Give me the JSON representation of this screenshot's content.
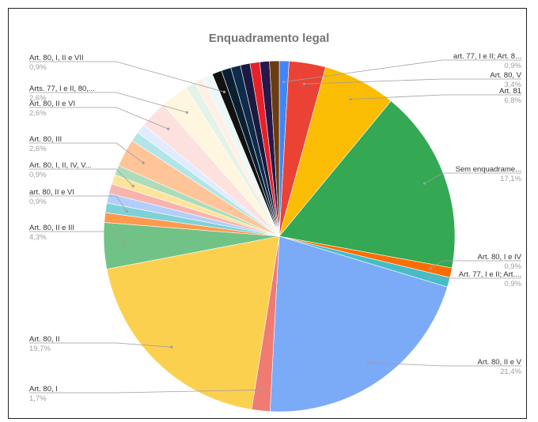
{
  "chart_data": {
    "type": "pie",
    "title": "Enquadramento legal",
    "legend": "none",
    "slices": [
      {
        "label": "art. 77, I e II; Art. 8...",
        "value": 0.9,
        "value_label": "0,9%",
        "color": "#4285f4",
        "shown": true
      },
      {
        "label": "Art. 80, V",
        "value": 3.4,
        "value_label": "3,4%",
        "color": "#ea4335",
        "shown": true
      },
      {
        "label": "Art. 81",
        "value": 6.8,
        "value_label": "6,8%",
        "color": "#fbbc04",
        "shown": true
      },
      {
        "label": "Sem enquadrame...",
        "value": 17.1,
        "value_label": "17,1%",
        "color": "#34a853",
        "shown": true
      },
      {
        "label": "Art. 80, I e IV",
        "value": 0.9,
        "value_label": "0,9%",
        "color": "#ff6d01",
        "shown": true
      },
      {
        "label": "Art. 77, I e II; Art....",
        "value": 0.9,
        "value_label": "0,9%",
        "color": "#46bdc6",
        "shown": true
      },
      {
        "label": "Art. 80, II e V",
        "value": 21.4,
        "value_label": "21,4%",
        "color": "#7baaf7",
        "shown": true
      },
      {
        "label": "Art. 80, I",
        "value": 1.7,
        "value_label": "1,7%",
        "color": "#f07b72",
        "shown": true
      },
      {
        "label": "Art. 80, II",
        "value": 19.7,
        "value_label": "19,7%",
        "color": "#fcd04f",
        "shown": true
      },
      {
        "label": "Art. 80, II e III",
        "value": 4.3,
        "value_label": "4,3%",
        "color": "#71c287",
        "shown": true
      },
      {
        "label": "",
        "value": 0.9,
        "value_label": "",
        "color": "#ff994d",
        "shown": false
      },
      {
        "label": "art. 80, II e VI",
        "value": 0.9,
        "value_label": "0,9%",
        "color": "#7ed1d7",
        "shown": true
      },
      {
        "label": "",
        "value": 0.9,
        "value_label": "",
        "color": "#b3cefb",
        "shown": false
      },
      {
        "label": "",
        "value": 0.9,
        "value_label": "",
        "color": "#f7b4ae",
        "shown": false
      },
      {
        "label": "Art. 80, I, II, IV, V...",
        "value": 0.9,
        "value_label": "0,9%",
        "color": "#fde49b",
        "shown": true
      },
      {
        "label": "",
        "value": 0.9,
        "value_label": "",
        "color": "#aedcba",
        "shown": false
      },
      {
        "label": "Art. 80, III",
        "value": 2.6,
        "value_label": "2,6%",
        "color": "#ffc599",
        "shown": true
      },
      {
        "label": "",
        "value": 0.9,
        "value_label": "",
        "color": "#b2e5e8",
        "shown": false
      },
      {
        "label": "",
        "value": 0.9,
        "value_label": "",
        "color": "#e0ebfd",
        "shown": false
      },
      {
        "label": "Art. 80, II e VI",
        "value": 2.6,
        "value_label": "2,6%",
        "color": "#fce1df",
        "shown": true
      },
      {
        "label": "Arts. 77, I e II, 80,...",
        "value": 2.6,
        "value_label": "2,6%",
        "color": "#fef6df",
        "shown": true
      },
      {
        "label": "",
        "value": 0.9,
        "value_label": "",
        "color": "#e3f3e7",
        "shown": false
      },
      {
        "label": "",
        "value": 0.9,
        "value_label": "",
        "color": "#fff0e5",
        "shown": false
      },
      {
        "label": "",
        "value": 0.9,
        "value_label": "",
        "color": "#ecf7f8",
        "shown": false
      },
      {
        "label": "Art. 80, I, II e VII",
        "value": 0.9,
        "value_label": "0,9%",
        "color": "#111111",
        "shown": true
      },
      {
        "label": "",
        "value": 0.9,
        "value_label": "",
        "color": "#0b1f33",
        "shown": false
      },
      {
        "label": "",
        "value": 0.9,
        "value_label": "",
        "color": "#0d2b4a",
        "shown": false
      },
      {
        "label": "",
        "value": 0.9,
        "value_label": "",
        "color": "#1a1a40",
        "shown": false
      },
      {
        "label": "",
        "value": 0.9,
        "value_label": "",
        "color": "#e8202a",
        "shown": false
      },
      {
        "label": "",
        "value": 0.9,
        "value_label": "",
        "color": "#26184a",
        "shown": false
      },
      {
        "label": "",
        "value": 0.9,
        "value_label": "",
        "color": "#6b3c11",
        "shown": false
      }
    ]
  }
}
